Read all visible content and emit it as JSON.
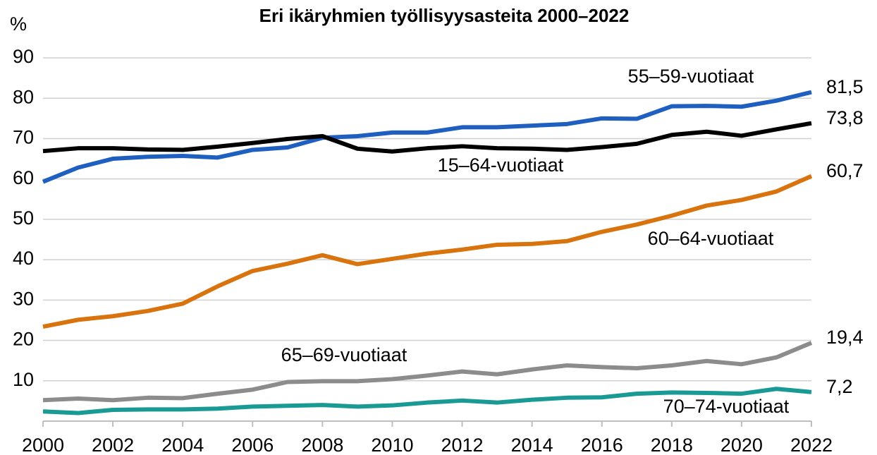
{
  "chart_data": {
    "type": "line",
    "title": "Eri ikäryhmien työllisyysasteita 2000–2022",
    "y_label": "%",
    "x": [
      2000,
      2001,
      2002,
      2003,
      2004,
      2005,
      2006,
      2007,
      2008,
      2009,
      2010,
      2011,
      2012,
      2013,
      2014,
      2015,
      2016,
      2017,
      2018,
      2019,
      2020,
      2021,
      2022
    ],
    "xlim": [
      2000,
      2022
    ],
    "xticks": [
      2000,
      2002,
      2004,
      2006,
      2008,
      2010,
      2012,
      2014,
      2016,
      2018,
      2020,
      2022
    ],
    "ylim": [
      0,
      90
    ],
    "yticks": [
      10,
      20,
      30,
      40,
      50,
      60,
      70,
      80,
      90
    ],
    "grid": true,
    "series": [
      {
        "name": "55–59-vuotiaat",
        "color": "#1f5fbf",
        "values": [
          59.3,
          62.8,
          65.0,
          65.5,
          65.7,
          65.3,
          67.2,
          67.8,
          70.2,
          70.6,
          71.5,
          71.5,
          72.8,
          72.8,
          73.2,
          73.6,
          75.0,
          74.9,
          78.0,
          78.1,
          77.9,
          79.4,
          81.5
        ],
        "value_labels": [
          null,
          null,
          null,
          null,
          null,
          null,
          null,
          null,
          null,
          null,
          null,
          null,
          null,
          null,
          null,
          null,
          null,
          null,
          null,
          null,
          null,
          null,
          "81,5"
        ]
      },
      {
        "name": "15–64-vuotiaat",
        "color": "#000000",
        "values": [
          66.9,
          67.6,
          67.6,
          67.3,
          67.2,
          68.0,
          68.9,
          69.9,
          70.6,
          67.5,
          66.8,
          67.6,
          68.1,
          67.6,
          67.5,
          67.2,
          67.9,
          68.7,
          70.9,
          71.7,
          70.7,
          72.3,
          73.8
        ],
        "value_labels": [
          null,
          null,
          null,
          null,
          null,
          null,
          null,
          null,
          null,
          null,
          null,
          null,
          null,
          null,
          null,
          null,
          null,
          null,
          null,
          null,
          null,
          null,
          "73,8"
        ]
      },
      {
        "name": "60–64-vuotiaat",
        "color": "#d9730d",
        "values": [
          23.4,
          25.1,
          26.0,
          27.3,
          29.1,
          33.4,
          37.2,
          39.0,
          41.1,
          38.9,
          40.2,
          41.5,
          42.5,
          43.7,
          43.9,
          44.6,
          46.9,
          48.7,
          50.9,
          53.4,
          54.8,
          56.9,
          60.7
        ],
        "value_labels": [
          null,
          null,
          null,
          null,
          null,
          null,
          null,
          null,
          null,
          null,
          null,
          null,
          null,
          null,
          null,
          null,
          null,
          null,
          null,
          null,
          null,
          null,
          "60,7"
        ]
      },
      {
        "name": "65–69-vuotiaat",
        "color": "#8c8c8c",
        "values": [
          5.2,
          5.6,
          5.2,
          5.8,
          5.7,
          6.8,
          7.8,
          9.7,
          9.9,
          9.9,
          10.4,
          11.3,
          12.3,
          11.6,
          12.8,
          13.8,
          13.4,
          13.1,
          13.8,
          14.9,
          14.1,
          15.8,
          19.4
        ],
        "value_labels": [
          null,
          null,
          null,
          null,
          null,
          null,
          null,
          null,
          null,
          null,
          null,
          null,
          null,
          null,
          null,
          null,
          null,
          null,
          null,
          null,
          null,
          null,
          "19,4"
        ]
      },
      {
        "name": "70–74-vuotiaat",
        "color": "#1a9a94",
        "values": [
          2.4,
          2.0,
          2.8,
          2.9,
          2.9,
          3.1,
          3.6,
          3.8,
          4.0,
          3.6,
          3.9,
          4.6,
          5.1,
          4.6,
          5.3,
          5.8,
          5.9,
          6.8,
          7.1,
          7.0,
          6.8,
          8.0,
          7.2
        ],
        "value_labels": [
          null,
          null,
          null,
          null,
          null,
          null,
          null,
          null,
          null,
          null,
          null,
          null,
          null,
          null,
          null,
          null,
          null,
          null,
          null,
          null,
          null,
          null,
          "7,2"
        ]
      }
    ]
  }
}
